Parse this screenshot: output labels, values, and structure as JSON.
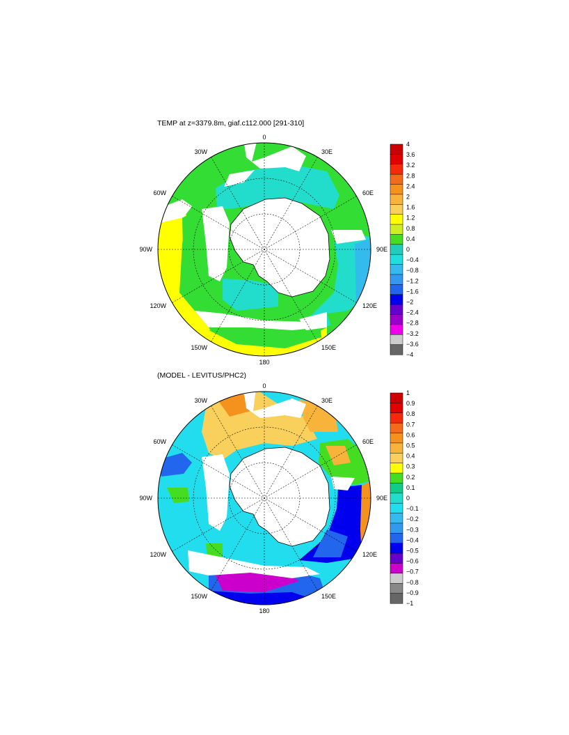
{
  "panels": [
    {
      "id": "temp",
      "title": "TEMP at z=3379.8m, giaf.c112.000 [291-310]",
      "lon_labels": [
        "0",
        "30E",
        "60E",
        "90E",
        "120E",
        "150E",
        "180",
        "150W",
        "120W",
        "90W",
        "60W",
        "30W"
      ],
      "colorbar": {
        "labels": [
          "4",
          "3.6",
          "3.2",
          "2.8",
          "2.4",
          "2",
          "1.6",
          "1.2",
          "0.8",
          "0.4",
          "0",
          "−0.4",
          "−0.8",
          "−1.2",
          "−1.6",
          "−2",
          "−2.4",
          "−2.8",
          "−3.2",
          "−3.6",
          "−4"
        ],
        "colors": [
          "#cc0000",
          "#e00000",
          "#f52a0a",
          "#f26b1b",
          "#f5921e",
          "#f7b33a",
          "#fad05c",
          "#ffff00",
          "#ccee22",
          "#44dd22",
          "#22ccbb",
          "#22dddd",
          "#33bbee",
          "#3399ee",
          "#2266ee",
          "#0000ee",
          "#6600cc",
          "#9900cc",
          "#ee00ee",
          "#cccccc",
          "#666666"
        ]
      }
    },
    {
      "id": "diff",
      "title": "(MODEL - LEVITUS/PHC2)",
      "lon_labels": [
        "0",
        "30E",
        "60E",
        "90E",
        "120E",
        "150E",
        "180",
        "150W",
        "120W",
        "90W",
        "60W",
        "30W"
      ],
      "colorbar": {
        "labels": [
          "1",
          "0.9",
          "0.8",
          "0.7",
          "0.6",
          "0.5",
          "0.4",
          "0.3",
          "0.2",
          "0.1",
          "0",
          "−0.1",
          "−0.2",
          "−0.3",
          "−0.4",
          "−0.5",
          "−0.6",
          "−0.7",
          "−0.8",
          "−0.9",
          "−1"
        ],
        "colors": [
          "#cc0000",
          "#e00000",
          "#f52a0a",
          "#f26b1b",
          "#f5921e",
          "#f7b33a",
          "#fad05c",
          "#ffff00",
          "#44dd22",
          "#11cc88",
          "#22ddcc",
          "#22ddee",
          "#33bbee",
          "#3399ee",
          "#2266ee",
          "#0000ee",
          "#6600cc",
          "#cc00cc",
          "#cccccc",
          "#888888",
          "#666666"
        ]
      }
    }
  ],
  "colors": {
    "land": "#ffffff",
    "coast": "#000000",
    "grid": "#000000"
  }
}
